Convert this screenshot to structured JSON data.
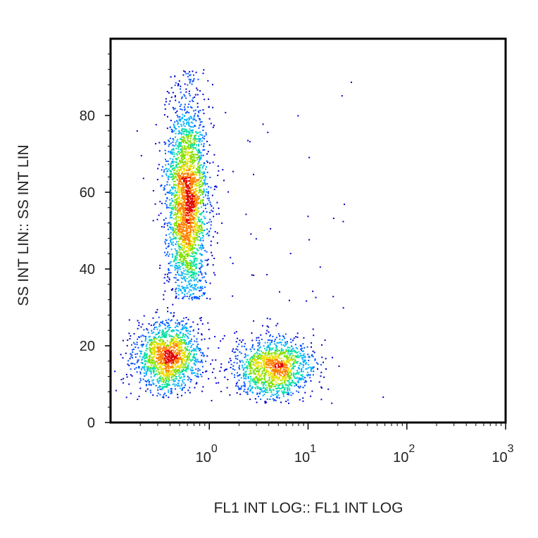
{
  "chart_data": {
    "type": "scatter",
    "plot_style": "flow cytometry density dot plot",
    "xlabel": "FL1 INT LOG:: FL1 INT LOG",
    "ylabel": "SS INT LIN:: SS INT LIN",
    "x_scale": "log",
    "xlim": [
      0.1,
      1000
    ],
    "x_ticks": [
      {
        "value": 1,
        "base": "10",
        "exp": "0"
      },
      {
        "value": 10,
        "base": "10",
        "exp": "1"
      },
      {
        "value": 100,
        "base": "10",
        "exp": "2"
      },
      {
        "value": 1000,
        "base": "10",
        "exp": "3"
      }
    ],
    "ylim": [
      0,
      100
    ],
    "y_ticks": [
      "0",
      "20",
      "40",
      "60",
      "80"
    ],
    "y_tick_values": [
      0,
      20,
      40,
      60,
      80
    ],
    "grid": false,
    "legend": "none",
    "density_colors": [
      "#0000cc",
      "#0050ff",
      "#00b0ff",
      "#00e0a0",
      "#80e000",
      "#e8e000",
      "#ff8000",
      "#e00000"
    ],
    "populations": [
      {
        "x_center": 0.6,
        "x_spread_decades": 0.11,
        "y_center": 57,
        "y_spread": 14,
        "y_range": [
          32,
          92
        ],
        "count": 2600
      },
      {
        "x_center": 0.38,
        "x_spread_decades": 0.17,
        "y_center": 17,
        "y_spread": 4.5,
        "y_range": [
          6,
          30
        ],
        "count": 1400
      },
      {
        "x_center": 4.5,
        "x_spread_decades": 0.2,
        "y_center": 14,
        "y_spread": 4,
        "y_range": [
          5,
          28
        ],
        "count": 1300
      },
      {
        "x_center": 3.0,
        "x_spread_decades": 0.6,
        "y_center": 40,
        "y_spread": 25,
        "y_range": [
          5,
          90
        ],
        "count": 70
      }
    ]
  }
}
